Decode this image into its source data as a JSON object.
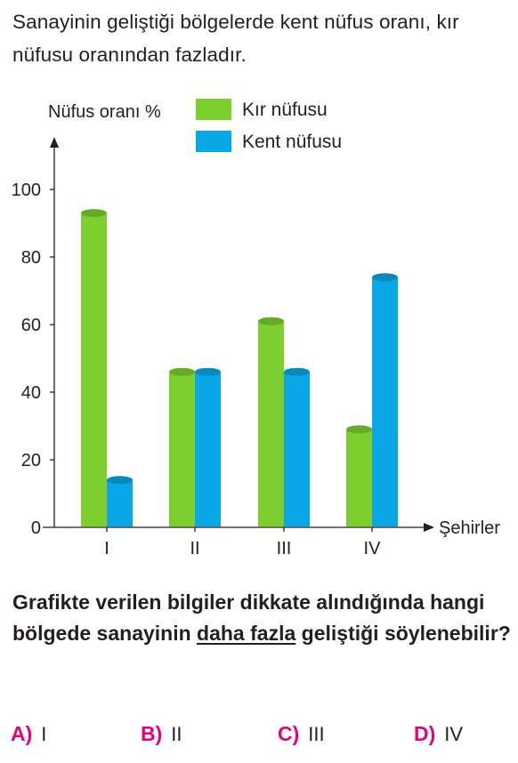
{
  "intro_text": "Sanayinin geliştiği bölgelerde kent nüfus oranı, kır nüfusu oranından fazladır.",
  "question": {
    "part1": "Grafikte verilen bilgiler dikkate alındığında hangi bölgede sanayinin ",
    "emphasis": "daha fazla",
    "part2": " geliştiği söylenebilir?"
  },
  "options": [
    {
      "letter": "A)",
      "value": "I"
    },
    {
      "letter": "B)",
      "value": "II"
    },
    {
      "letter": "C)",
      "value": "III"
    },
    {
      "letter": "D)",
      "value": "IV"
    }
  ],
  "colors": {
    "kir": "#7ccf2e",
    "kent": "#0aa7e6",
    "accent": "#e6007e"
  },
  "chart_data": {
    "type": "bar",
    "title": "",
    "xlabel": "Şehirler",
    "ylabel": "Nüfus oranı %",
    "categories": [
      "I",
      "II",
      "III",
      "IV"
    ],
    "series": [
      {
        "name": "Kır nüfusu",
        "values": [
          93,
          46,
          61,
          29
        ]
      },
      {
        "name": "Kent nüfusu",
        "values": [
          14,
          46,
          46,
          74
        ]
      }
    ],
    "yticks": [
      0,
      20,
      40,
      60,
      80,
      100
    ],
    "ylim": [
      0,
      100
    ],
    "legend": "top-right",
    "grid": false
  }
}
